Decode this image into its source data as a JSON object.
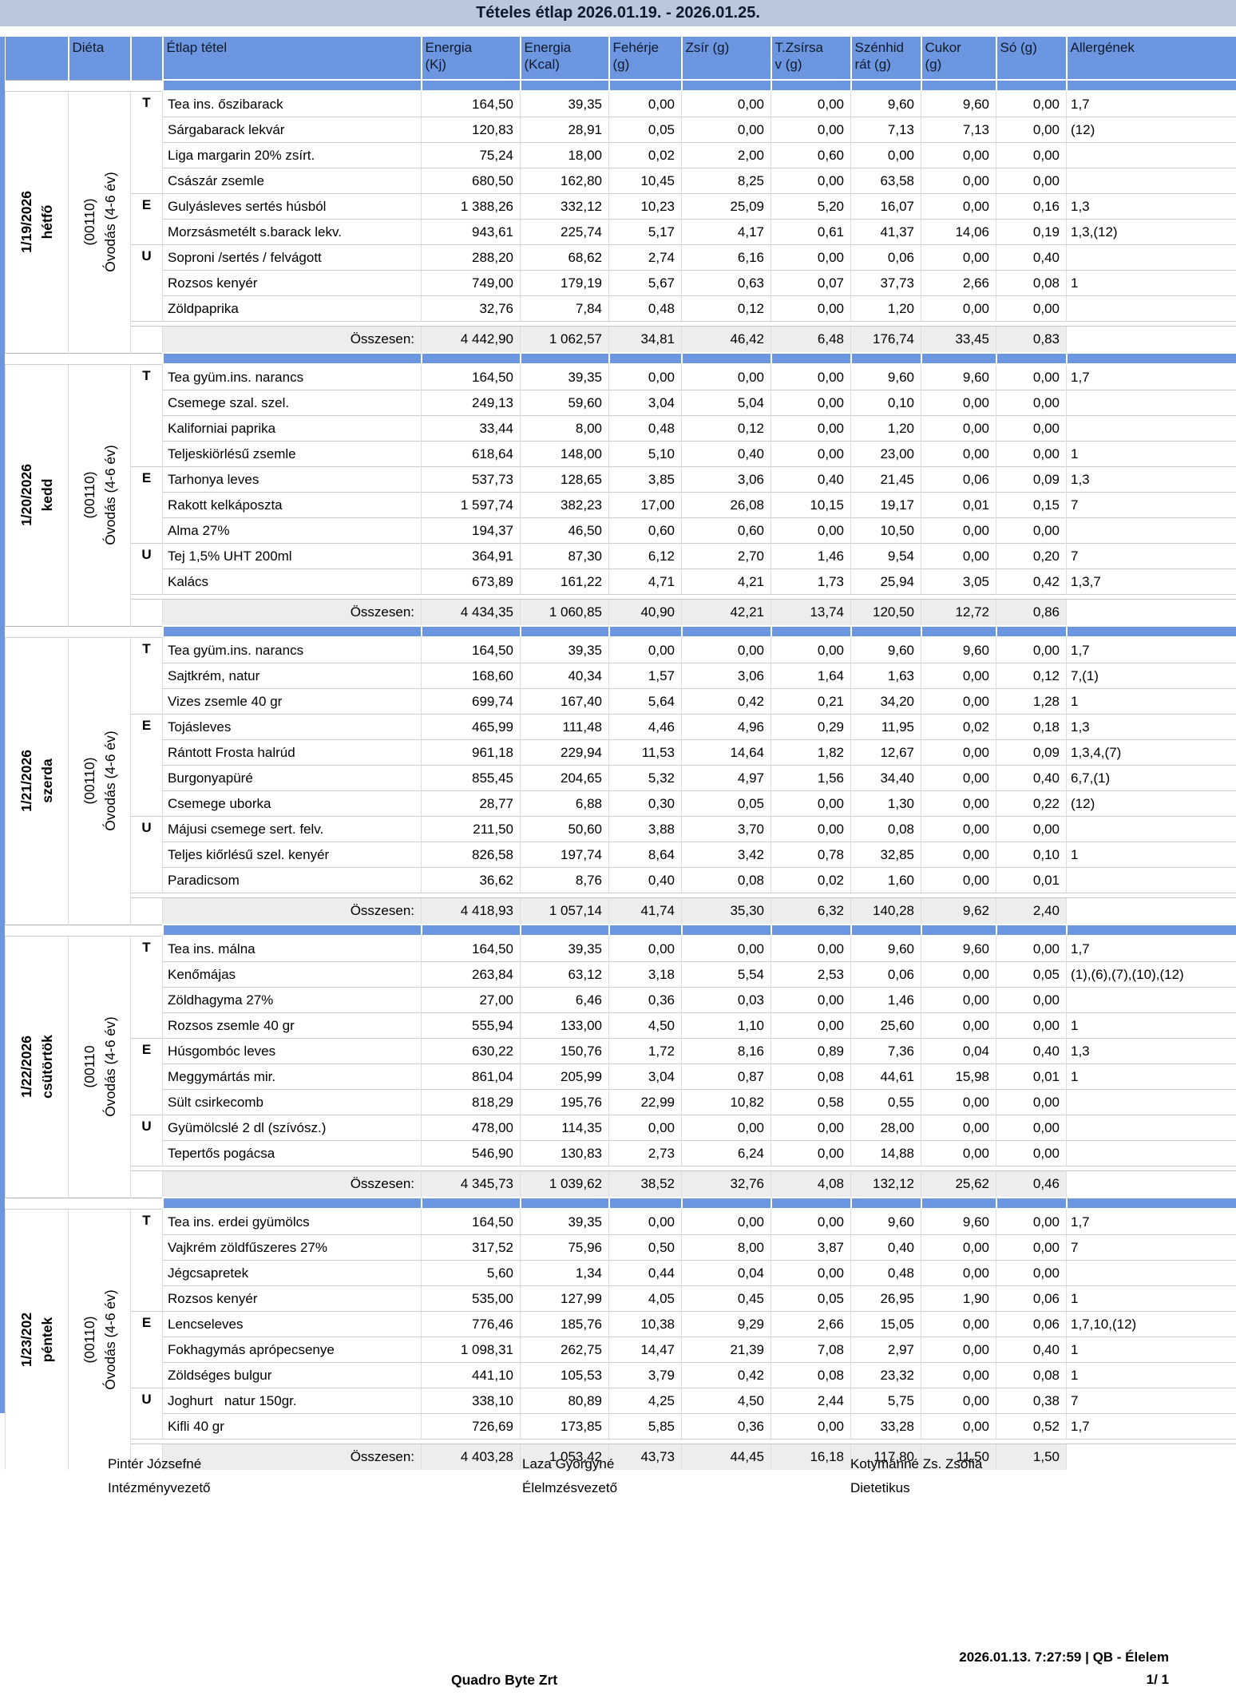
{
  "title": "Tételes étlap 2026.01.19. - 2026.01.25.",
  "columns": {
    "dieta": "Diéta",
    "item": "Étlap tétel",
    "kj": "Energia\n(Kj)",
    "kcal": "Energia\n(Kcal)",
    "feherje": "Fehérje\n(g)",
    "zsir": "Zsír (g)",
    "tzsirsav": "T.Zsírsa\nv (g)",
    "szenhidrat": "Szénhid\nrát (g)",
    "cukor": "Cukor\n(g)",
    "so": "Só (g)",
    "allergen": "Allergének"
  },
  "total_label": "Összesen:",
  "colors": {
    "header_blue": "#6d96e0",
    "title_bar": "#b9c8dc",
    "total_row_bg": "#ededed"
  },
  "days": [
    {
      "date": "1/19/2026\nhétfő",
      "dieta": "(00110)\nÓvodás (4-6 év)",
      "rows": [
        {
          "meal": "T",
          "item": "Tea ins. őszibarack",
          "kj": "164,50",
          "kcal": "39,35",
          "feherje": "0,00",
          "zsir": "0,00",
          "tzsirsav": "0,00",
          "szenhidrat": "9,60",
          "cukor": "9,60",
          "so": "0,00",
          "allergen": "1,7"
        },
        {
          "meal": "",
          "item": "Sárgabarack lekvár",
          "kj": "120,83",
          "kcal": "28,91",
          "feherje": "0,05",
          "zsir": "0,00",
          "tzsirsav": "0,00",
          "szenhidrat": "7,13",
          "cukor": "7,13",
          "so": "0,00",
          "allergen": "(12)"
        },
        {
          "meal": "",
          "item": "Liga margarin 20% zsírt.",
          "kj": "75,24",
          "kcal": "18,00",
          "feherje": "0,02",
          "zsir": "2,00",
          "tzsirsav": "0,60",
          "szenhidrat": "0,00",
          "cukor": "0,00",
          "so": "0,00",
          "allergen": ""
        },
        {
          "meal": "",
          "item": "Császár zsemle",
          "kj": "680,50",
          "kcal": "162,80",
          "feherje": "10,45",
          "zsir": "8,25",
          "tzsirsav": "0,00",
          "szenhidrat": "63,58",
          "cukor": "0,00",
          "so": "0,00",
          "allergen": ""
        },
        {
          "meal": "E",
          "item": "Gulyásleves sertés húsból",
          "kj": "1 388,26",
          "kcal": "332,12",
          "feherje": "10,23",
          "zsir": "25,09",
          "tzsirsav": "5,20",
          "szenhidrat": "16,07",
          "cukor": "0,00",
          "so": "0,16",
          "allergen": "1,3"
        },
        {
          "meal": "",
          "item": "Morzsásmetélt s.barack lekv.",
          "kj": "943,61",
          "kcal": "225,74",
          "feherje": "5,17",
          "zsir": "4,17",
          "tzsirsav": "0,61",
          "szenhidrat": "41,37",
          "cukor": "14,06",
          "so": "0,19",
          "allergen": "1,3,(12)"
        },
        {
          "meal": "U",
          "item": "Soproni /sertés / felvágott",
          "kj": "288,20",
          "kcal": "68,62",
          "feherje": "2,74",
          "zsir": "6,16",
          "tzsirsav": "0,00",
          "szenhidrat": "0,06",
          "cukor": "0,00",
          "so": "0,40",
          "allergen": ""
        },
        {
          "meal": "",
          "item": "Rozsos kenyér",
          "kj": "749,00",
          "kcal": "179,19",
          "feherje": "5,67",
          "zsir": "0,63",
          "tzsirsav": "0,07",
          "szenhidrat": "37,73",
          "cukor": "2,66",
          "so": "0,08",
          "allergen": "1"
        },
        {
          "meal": "",
          "item": "Zöldpaprika",
          "kj": "32,76",
          "kcal": "7,84",
          "feherje": "0,48",
          "zsir": "0,12",
          "tzsirsav": "0,00",
          "szenhidrat": "1,20",
          "cukor": "0,00",
          "so": "0,00",
          "allergen": ""
        }
      ],
      "total": {
        "kj": "4 442,90",
        "kcal": "1 062,57",
        "feherje": "34,81",
        "zsir": "46,42",
        "tzsirsav": "6,48",
        "szenhidrat": "176,74",
        "cukor": "33,45",
        "so": "0,83"
      }
    },
    {
      "date": "1/20/2026\nkedd",
      "dieta": "(00110)\nÓvodás (4-6 év)",
      "rows": [
        {
          "meal": "T",
          "item": "Tea gyüm.ins. narancs",
          "kj": "164,50",
          "kcal": "39,35",
          "feherje": "0,00",
          "zsir": "0,00",
          "tzsirsav": "0,00",
          "szenhidrat": "9,60",
          "cukor": "9,60",
          "so": "0,00",
          "allergen": "1,7"
        },
        {
          "meal": "",
          "item": "Csemege szal. szel.",
          "kj": "249,13",
          "kcal": "59,60",
          "feherje": "3,04",
          "zsir": "5,04",
          "tzsirsav": "0,00",
          "szenhidrat": "0,10",
          "cukor": "0,00",
          "so": "0,00",
          "allergen": ""
        },
        {
          "meal": "",
          "item": "Kaliforniai paprika",
          "kj": "33,44",
          "kcal": "8,00",
          "feherje": "0,48",
          "zsir": "0,12",
          "tzsirsav": "0,00",
          "szenhidrat": "1,20",
          "cukor": "0,00",
          "so": "0,00",
          "allergen": ""
        },
        {
          "meal": "",
          "item": "Teljeskiörlésű zsemle",
          "kj": "618,64",
          "kcal": "148,00",
          "feherje": "5,10",
          "zsir": "0,40",
          "tzsirsav": "0,00",
          "szenhidrat": "23,00",
          "cukor": "0,00",
          "so": "0,00",
          "allergen": "1"
        },
        {
          "meal": "E",
          "item": "Tarhonya leves",
          "kj": "537,73",
          "kcal": "128,65",
          "feherje": "3,85",
          "zsir": "3,06",
          "tzsirsav": "0,40",
          "szenhidrat": "21,45",
          "cukor": "0,06",
          "so": "0,09",
          "allergen": "1,3"
        },
        {
          "meal": "",
          "item": "Rakott kelkáposzta",
          "kj": "1 597,74",
          "kcal": "382,23",
          "feherje": "17,00",
          "zsir": "26,08",
          "tzsirsav": "10,15",
          "szenhidrat": "19,17",
          "cukor": "0,01",
          "so": "0,15",
          "allergen": "7"
        },
        {
          "meal": "",
          "item": "Alma 27%",
          "kj": "194,37",
          "kcal": "46,50",
          "feherje": "0,60",
          "zsir": "0,60",
          "tzsirsav": "0,00",
          "szenhidrat": "10,50",
          "cukor": "0,00",
          "so": "0,00",
          "allergen": ""
        },
        {
          "meal": "U",
          "item": "Tej 1,5% UHT 200ml",
          "kj": "364,91",
          "kcal": "87,30",
          "feherje": "6,12",
          "zsir": "2,70",
          "tzsirsav": "1,46",
          "szenhidrat": "9,54",
          "cukor": "0,00",
          "so": "0,20",
          "allergen": "7"
        },
        {
          "meal": "",
          "item": "Kalács",
          "kj": "673,89",
          "kcal": "161,22",
          "feherje": "4,71",
          "zsir": "4,21",
          "tzsirsav": "1,73",
          "szenhidrat": "25,94",
          "cukor": "3,05",
          "so": "0,42",
          "allergen": "1,3,7"
        }
      ],
      "total": {
        "kj": "4 434,35",
        "kcal": "1 060,85",
        "feherje": "40,90",
        "zsir": "42,21",
        "tzsirsav": "13,74",
        "szenhidrat": "120,50",
        "cukor": "12,72",
        "so": "0,86"
      }
    },
    {
      "date": "1/21/2026\nszerda",
      "dieta": "(00110)\nÓvodás (4-6 év)",
      "rows": [
        {
          "meal": "T",
          "item": "Tea gyüm.ins. narancs",
          "kj": "164,50",
          "kcal": "39,35",
          "feherje": "0,00",
          "zsir": "0,00",
          "tzsirsav": "0,00",
          "szenhidrat": "9,60",
          "cukor": "9,60",
          "so": "0,00",
          "allergen": "1,7"
        },
        {
          "meal": "",
          "item": "Sajtkrém, natur",
          "kj": "168,60",
          "kcal": "40,34",
          "feherje": "1,57",
          "zsir": "3,06",
          "tzsirsav": "1,64",
          "szenhidrat": "1,63",
          "cukor": "0,00",
          "so": "0,12",
          "allergen": "7,(1)"
        },
        {
          "meal": "",
          "item": "Vizes zsemle 40 gr",
          "kj": "699,74",
          "kcal": "167,40",
          "feherje": "5,64",
          "zsir": "0,42",
          "tzsirsav": "0,21",
          "szenhidrat": "34,20",
          "cukor": "0,00",
          "so": "1,28",
          "allergen": "1"
        },
        {
          "meal": "E",
          "item": "Tojásleves",
          "kj": "465,99",
          "kcal": "111,48",
          "feherje": "4,46",
          "zsir": "4,96",
          "tzsirsav": "0,29",
          "szenhidrat": "11,95",
          "cukor": "0,02",
          "so": "0,18",
          "allergen": "1,3"
        },
        {
          "meal": "",
          "item": "Rántott Frosta halrúd",
          "kj": "961,18",
          "kcal": "229,94",
          "feherje": "11,53",
          "zsir": "14,64",
          "tzsirsav": "1,82",
          "szenhidrat": "12,67",
          "cukor": "0,00",
          "so": "0,09",
          "allergen": "1,3,4,(7)"
        },
        {
          "meal": "",
          "item": "Burgonyapüré",
          "kj": "855,45",
          "kcal": "204,65",
          "feherje": "5,32",
          "zsir": "4,97",
          "tzsirsav": "1,56",
          "szenhidrat": "34,40",
          "cukor": "0,00",
          "so": "0,40",
          "allergen": "6,7,(1)"
        },
        {
          "meal": "",
          "item": "Csemege uborka",
          "kj": "28,77",
          "kcal": "6,88",
          "feherje": "0,30",
          "zsir": "0,05",
          "tzsirsav": "0,00",
          "szenhidrat": "1,30",
          "cukor": "0,00",
          "so": "0,22",
          "allergen": "(12)"
        },
        {
          "meal": "U",
          "item": "Májusi csemege sert. felv.",
          "kj": "211,50",
          "kcal": "50,60",
          "feherje": "3,88",
          "zsir": "3,70",
          "tzsirsav": "0,00",
          "szenhidrat": "0,08",
          "cukor": "0,00",
          "so": "0,00",
          "allergen": ""
        },
        {
          "meal": "",
          "item": "Teljes kiőrlésű szel. kenyér",
          "kj": "826,58",
          "kcal": "197,74",
          "feherje": "8,64",
          "zsir": "3,42",
          "tzsirsav": "0,78",
          "szenhidrat": "32,85",
          "cukor": "0,00",
          "so": "0,10",
          "allergen": "1"
        },
        {
          "meal": "",
          "item": "Paradicsom",
          "kj": "36,62",
          "kcal": "8,76",
          "feherje": "0,40",
          "zsir": "0,08",
          "tzsirsav": "0,02",
          "szenhidrat": "1,60",
          "cukor": "0,00",
          "so": "0,01",
          "allergen": ""
        }
      ],
      "total": {
        "kj": "4 418,93",
        "kcal": "1 057,14",
        "feherje": "41,74",
        "zsir": "35,30",
        "tzsirsav": "6,32",
        "szenhidrat": "140,28",
        "cukor": "9,62",
        "so": "2,40"
      }
    },
    {
      "date": "1/22/2026\ncsütörtök",
      "dieta": "(00110\nÓvodás (4-6 év)",
      "rows": [
        {
          "meal": "T",
          "item": "Tea ins. málna",
          "kj": "164,50",
          "kcal": "39,35",
          "feherje": "0,00",
          "zsir": "0,00",
          "tzsirsav": "0,00",
          "szenhidrat": "9,60",
          "cukor": "9,60",
          "so": "0,00",
          "allergen": "1,7"
        },
        {
          "meal": "",
          "item": "Kenőmájas",
          "kj": "263,84",
          "kcal": "63,12",
          "feherje": "3,18",
          "zsir": "5,54",
          "tzsirsav": "2,53",
          "szenhidrat": "0,06",
          "cukor": "0,00",
          "so": "0,05",
          "allergen": "(1),(6),(7),(10),(12)"
        },
        {
          "meal": "",
          "item": "Zöldhagyma 27%",
          "kj": "27,00",
          "kcal": "6,46",
          "feherje": "0,36",
          "zsir": "0,03",
          "tzsirsav": "0,00",
          "szenhidrat": "1,46",
          "cukor": "0,00",
          "so": "0,00",
          "allergen": ""
        },
        {
          "meal": "",
          "item": "Rozsos zsemle 40 gr",
          "kj": "555,94",
          "kcal": "133,00",
          "feherje": "4,50",
          "zsir": "1,10",
          "tzsirsav": "0,00",
          "szenhidrat": "25,60",
          "cukor": "0,00",
          "so": "0,00",
          "allergen": "1"
        },
        {
          "meal": "E",
          "item": "Húsgombóc leves",
          "kj": "630,22",
          "kcal": "150,76",
          "feherje": "1,72",
          "zsir": "8,16",
          "tzsirsav": "0,89",
          "szenhidrat": "7,36",
          "cukor": "0,04",
          "so": "0,40",
          "allergen": "1,3"
        },
        {
          "meal": "",
          "item": "Meggymártás mir.",
          "kj": "861,04",
          "kcal": "205,99",
          "feherje": "3,04",
          "zsir": "0,87",
          "tzsirsav": "0,08",
          "szenhidrat": "44,61",
          "cukor": "15,98",
          "so": "0,01",
          "allergen": "1"
        },
        {
          "meal": "",
          "item": "Sült csirkecomb",
          "kj": "818,29",
          "kcal": "195,76",
          "feherje": "22,99",
          "zsir": "10,82",
          "tzsirsav": "0,58",
          "szenhidrat": "0,55",
          "cukor": "0,00",
          "so": "0,00",
          "allergen": ""
        },
        {
          "meal": "U",
          "item": "Gyümölcslé 2 dl (szívósz.)",
          "kj": "478,00",
          "kcal": "114,35",
          "feherje": "0,00",
          "zsir": "0,00",
          "tzsirsav": "0,00",
          "szenhidrat": "28,00",
          "cukor": "0,00",
          "so": "0,00",
          "allergen": ""
        },
        {
          "meal": "",
          "item": "Tepertős pogácsa",
          "kj": "546,90",
          "kcal": "130,83",
          "feherje": "2,73",
          "zsir": "6,24",
          "tzsirsav": "0,00",
          "szenhidrat": "14,88",
          "cukor": "0,00",
          "so": "0,00",
          "allergen": ""
        }
      ],
      "total": {
        "kj": "4 345,73",
        "kcal": "1 039,62",
        "feherje": "38,52",
        "zsir": "32,76",
        "tzsirsav": "4,08",
        "szenhidrat": "132,12",
        "cukor": "25,62",
        "so": "0,46"
      }
    },
    {
      "date": "1/23/202\npéntek",
      "dieta": "(00110)\nÓvodás (4-6 év)",
      "rows": [
        {
          "meal": "T",
          "item": "Tea ins. erdei gyümölcs",
          "kj": "164,50",
          "kcal": "39,35",
          "feherje": "0,00",
          "zsir": "0,00",
          "tzsirsav": "0,00",
          "szenhidrat": "9,60",
          "cukor": "9,60",
          "so": "0,00",
          "allergen": "1,7"
        },
        {
          "meal": "",
          "item": "Vajkrém zöldfűszeres 27%",
          "kj": "317,52",
          "kcal": "75,96",
          "feherje": "0,50",
          "zsir": "8,00",
          "tzsirsav": "3,87",
          "szenhidrat": "0,40",
          "cukor": "0,00",
          "so": "0,00",
          "allergen": "7"
        },
        {
          "meal": "",
          "item": "Jégcsapretek",
          "kj": "5,60",
          "kcal": "1,34",
          "feherje": "0,44",
          "zsir": "0,04",
          "tzsirsav": "0,00",
          "szenhidrat": "0,48",
          "cukor": "0,00",
          "so": "0,00",
          "allergen": ""
        },
        {
          "meal": "",
          "item": "Rozsos kenyér",
          "kj": "535,00",
          "kcal": "127,99",
          "feherje": "4,05",
          "zsir": "0,45",
          "tzsirsav": "0,05",
          "szenhidrat": "26,95",
          "cukor": "1,90",
          "so": "0,06",
          "allergen": "1"
        },
        {
          "meal": "E",
          "item": "Lencseleves",
          "kj": "776,46",
          "kcal": "185,76",
          "feherje": "10,38",
          "zsir": "9,29",
          "tzsirsav": "2,66",
          "szenhidrat": "15,05",
          "cukor": "0,00",
          "so": "0,06",
          "allergen": "1,7,10,(12)"
        },
        {
          "meal": "",
          "item": "Fokhagymás aprópecsenye",
          "kj": "1 098,31",
          "kcal": "262,75",
          "feherje": "14,47",
          "zsir": "21,39",
          "tzsirsav": "7,08",
          "szenhidrat": "2,97",
          "cukor": "0,00",
          "so": "0,40",
          "allergen": "1"
        },
        {
          "meal": "",
          "item": "Zöldséges bulgur",
          "kj": "441,10",
          "kcal": "105,53",
          "feherje": "3,79",
          "zsir": "0,42",
          "tzsirsav": "0,08",
          "szenhidrat": "23,32",
          "cukor": "0,00",
          "so": "0,08",
          "allergen": "1"
        },
        {
          "meal": "U",
          "item": "Joghurt   natur 150gr.",
          "kj": "338,10",
          "kcal": "80,89",
          "feherje": "4,25",
          "zsir": "4,50",
          "tzsirsav": "2,44",
          "szenhidrat": "5,75",
          "cukor": "0,00",
          "so": "0,38",
          "allergen": "7"
        },
        {
          "meal": "",
          "item": "Kifli 40 gr",
          "kj": "726,69",
          "kcal": "173,85",
          "feherje": "5,85",
          "zsir": "0,36",
          "tzsirsav": "0,00",
          "szenhidrat": "33,28",
          "cukor": "0,00",
          "so": "0,52",
          "allergen": "1,7"
        }
      ],
      "total": {
        "kj": "4 403,28",
        "kcal": "1 053,42",
        "feherje": "43,73",
        "zsir": "44,45",
        "tzsirsav": "16,18",
        "szenhidrat": "117,80",
        "cukor": "11,50",
        "so": "1,50"
      }
    }
  ],
  "footer": {
    "signatures": [
      {
        "name": "Pintér Józsefné",
        "role": "Intézményvezető"
      },
      {
        "name": "Laza Györgyné",
        "role": "Élelmzésvezető"
      },
      {
        "name": "Kotymánné Zs. Zsófia",
        "role": "Dietetikus"
      }
    ],
    "company": "Quadro Byte Zrt",
    "printed": "2026.01.13. 7:27:59 | QB - Élelem",
    "page": "1/ 1"
  }
}
